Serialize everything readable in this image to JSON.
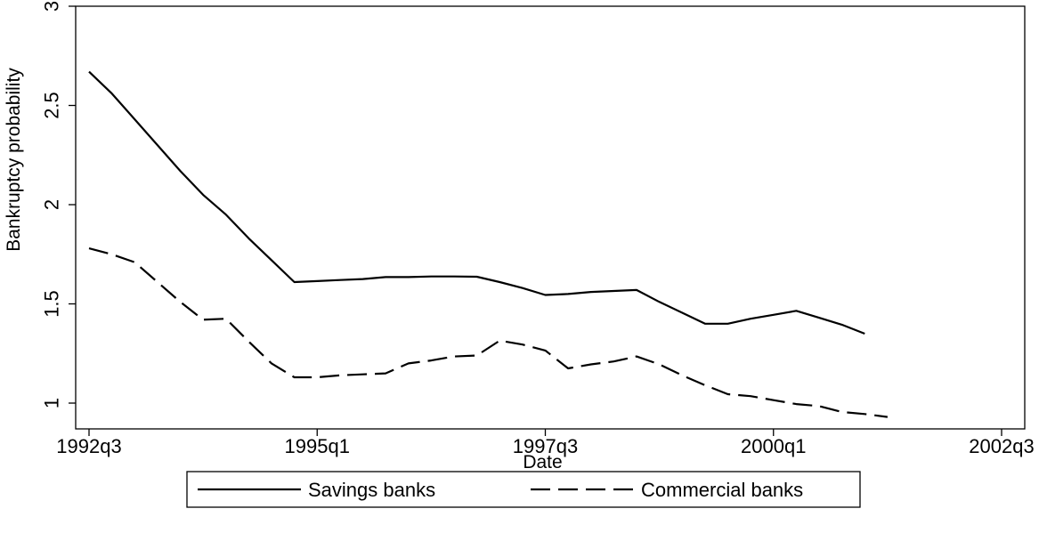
{
  "chart_data": {
    "type": "line",
    "xlabel": "Date",
    "ylabel": "Bankruptcy probability",
    "x_ticks": [
      "1992q3",
      "1995q1",
      "1997q3",
      "2000q1",
      "2002q3"
    ],
    "y_ticks": [
      "1",
      "1.5",
      "2",
      "2.5",
      "3"
    ],
    "y_ticks_rotated": true,
    "xlim": [
      "1992q3",
      "2002q3"
    ],
    "ylim": [
      0.87,
      3.0
    ],
    "grid": false,
    "legend_position": "bottom",
    "series": [
      {
        "name": "Savings banks",
        "line_style": "solid",
        "color": "#000000",
        "points": [
          [
            "1992q3",
            2.67
          ],
          [
            "1992q4",
            2.56
          ],
          [
            "1993q1",
            2.43
          ],
          [
            "1993q2",
            2.3
          ],
          [
            "1993q3",
            2.17
          ],
          [
            "1993q4",
            2.05
          ],
          [
            "1994q1",
            1.95
          ],
          [
            "1994q2",
            1.83
          ],
          [
            "1994q3",
            1.72
          ],
          [
            "1994q4",
            1.61
          ],
          [
            "1995q1",
            1.615
          ],
          [
            "1995q2",
            1.62
          ],
          [
            "1995q3",
            1.625
          ],
          [
            "1995q4",
            1.635
          ],
          [
            "1996q1",
            1.635
          ],
          [
            "1996q2",
            1.638
          ],
          [
            "1996q3",
            1.638
          ],
          [
            "1996q4",
            1.637
          ],
          [
            "1997q1",
            1.61
          ],
          [
            "1997q2",
            1.58
          ],
          [
            "1997q3",
            1.545
          ],
          [
            "1997q4",
            1.55
          ],
          [
            "1998q1",
            1.56
          ],
          [
            "1998q2",
            1.565
          ],
          [
            "1998q3",
            1.57
          ],
          [
            "1998q4",
            1.51
          ],
          [
            "1999q1",
            1.455
          ],
          [
            "1999q2",
            1.4
          ],
          [
            "1999q3",
            1.4
          ],
          [
            "1999q4",
            1.425
          ],
          [
            "2000q1",
            1.445
          ],
          [
            "2000q2",
            1.465
          ],
          [
            "2000q3",
            1.43
          ],
          [
            "2000q4",
            1.395
          ],
          [
            "2001q1",
            1.35
          ]
        ]
      },
      {
        "name": "Commercial banks",
        "line_style": "dashed",
        "color": "#000000",
        "points": [
          [
            "1992q3",
            1.78
          ],
          [
            "1992q4",
            1.75
          ],
          [
            "1993q1",
            1.71
          ],
          [
            "1993q2",
            1.61
          ],
          [
            "1993q3",
            1.51
          ],
          [
            "1993q4",
            1.42
          ],
          [
            "1994q1",
            1.425
          ],
          [
            "1994q2",
            1.31
          ],
          [
            "1994q3",
            1.2
          ],
          [
            "1994q4",
            1.13
          ],
          [
            "1995q1",
            1.13
          ],
          [
            "1995q2",
            1.14
          ],
          [
            "1995q3",
            1.145
          ],
          [
            "1995q4",
            1.15
          ],
          [
            "1996q1",
            1.2
          ],
          [
            "1996q2",
            1.215
          ],
          [
            "1996q3",
            1.235
          ],
          [
            "1996q4",
            1.24
          ],
          [
            "1997q1",
            1.315
          ],
          [
            "1997q2",
            1.295
          ],
          [
            "1997q3",
            1.265
          ],
          [
            "1997q4",
            1.175
          ],
          [
            "1998q1",
            1.195
          ],
          [
            "1998q2",
            1.21
          ],
          [
            "1998q3",
            1.235
          ],
          [
            "1998q4",
            1.195
          ],
          [
            "1999q1",
            1.14
          ],
          [
            "1999q2",
            1.09
          ],
          [
            "1999q3",
            1.045
          ],
          [
            "1999q4",
            1.035
          ],
          [
            "2000q1",
            1.015
          ],
          [
            "2000q2",
            0.995
          ],
          [
            "2000q3",
            0.985
          ],
          [
            "2000q4",
            0.955
          ],
          [
            "2001q1",
            0.945
          ],
          [
            "2001q2",
            0.93
          ]
        ]
      }
    ]
  }
}
